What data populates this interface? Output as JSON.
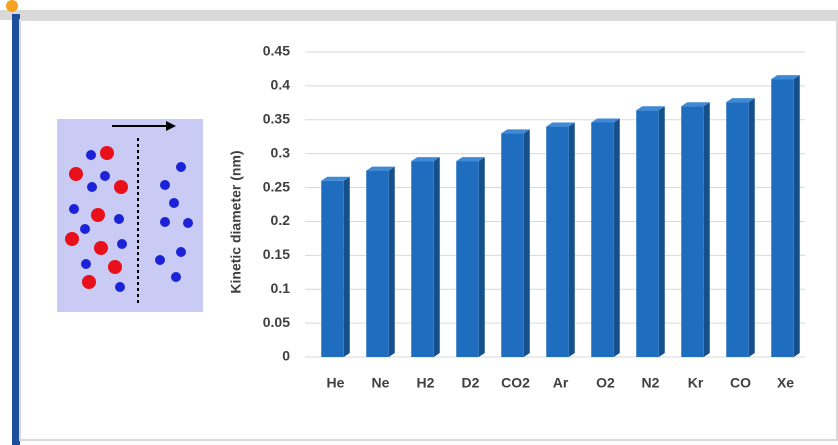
{
  "chart_data": {
    "type": "bar",
    "y_label": "Kinetic diameter (nm)",
    "categories": [
      "He",
      "Ne",
      "H2",
      "D2",
      "CO2",
      "Ar",
      "O2",
      "N2",
      "Kr",
      "CO",
      "Xe"
    ],
    "values": [
      0.26,
      0.275,
      0.289,
      0.289,
      0.33,
      0.34,
      0.346,
      0.364,
      0.37,
      0.376,
      0.41
    ],
    "color": "#1f6dbf",
    "ylim": [
      0,
      0.45
    ],
    "yticks": [
      0,
      0.05,
      0.1,
      0.15,
      0.2,
      0.25,
      0.3,
      0.35,
      0.4,
      0.45
    ],
    "grid": true
  }
}
